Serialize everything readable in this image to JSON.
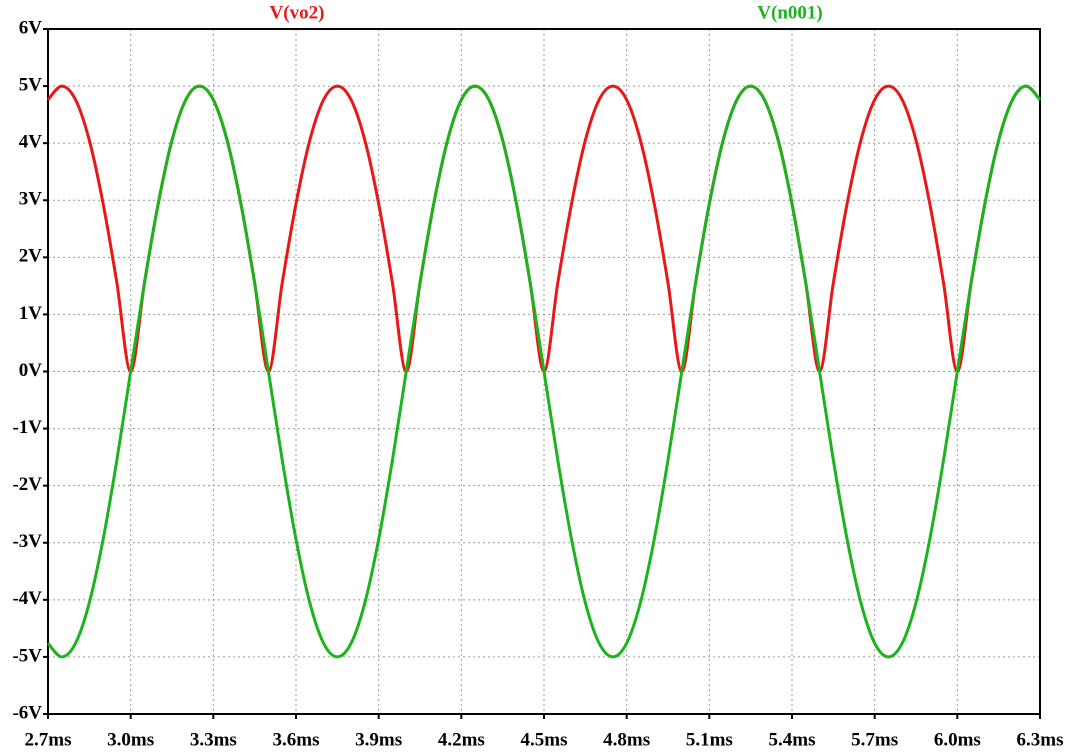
{
  "chart_data": {
    "type": "line",
    "x": [
      2.7,
      2.75,
      2.8,
      2.85,
      2.9,
      2.95,
      3,
      3.05,
      3.1,
      3.15,
      3.2,
      3.25,
      3.3,
      3.35,
      3.4,
      3.45,
      3.5,
      3.55,
      3.6,
      3.65,
      3.7,
      3.75,
      3.8,
      3.85,
      3.9,
      3.95,
      4,
      4.05,
      4.1,
      4.15,
      4.2,
      4.25,
      4.3,
      4.35,
      4.4,
      4.45,
      4.5,
      4.55,
      4.6,
      4.65,
      4.7,
      4.75,
      4.8,
      4.85,
      4.9,
      4.95,
      5,
      5.05,
      5.1,
      5.15,
      5.2,
      5.25,
      5.3,
      5.35,
      5.4,
      5.45,
      5.5,
      5.55,
      5.6,
      5.65,
      5.7,
      5.75,
      5.8,
      5.85,
      5.9,
      5.95,
      6,
      6.05,
      6.1,
      6.15,
      6.2,
      6.25,
      6.3
    ],
    "series": [
      {
        "name": "V(vo2)",
        "color": "#e81818",
        "values": [
          4.76,
          5,
          4.76,
          4.05,
          2.94,
          1.55,
          0,
          1.55,
          2.94,
          4.05,
          4.76,
          5,
          4.76,
          4.05,
          2.94,
          1.55,
          0,
          1.55,
          2.94,
          4.05,
          4.76,
          5,
          4.76,
          4.05,
          2.94,
          1.55,
          0,
          1.55,
          2.94,
          4.05,
          4.76,
          5,
          4.76,
          4.05,
          2.94,
          1.55,
          0,
          1.55,
          2.94,
          4.05,
          4.76,
          5,
          4.76,
          4.05,
          2.94,
          1.55,
          0,
          1.55,
          2.94,
          4.05,
          4.76,
          5,
          4.76,
          4.05,
          2.94,
          1.55,
          0,
          1.55,
          2.94,
          4.05,
          4.76,
          5,
          4.76,
          4.05,
          2.94,
          1.55,
          0,
          1.55,
          2.94,
          4.05,
          4.76,
          5,
          4.76
        ]
      },
      {
        "name": "V(n001)",
        "color": "#1cb41c",
        "values": [
          -4.76,
          -5,
          -4.76,
          -4.05,
          -2.94,
          -1.55,
          0,
          1.55,
          2.94,
          4.05,
          4.76,
          5,
          4.76,
          4.05,
          2.94,
          1.55,
          0,
          -1.55,
          -2.94,
          -4.05,
          -4.76,
          -5,
          -4.76,
          -4.05,
          -2.94,
          -1.55,
          0,
          1.55,
          2.94,
          4.05,
          4.76,
          5,
          4.76,
          4.05,
          2.94,
          1.55,
          0,
          -1.55,
          -2.94,
          -4.05,
          -4.76,
          -5,
          -4.76,
          -4.05,
          -2.94,
          -1.55,
          0,
          1.55,
          2.94,
          4.05,
          4.76,
          5,
          4.76,
          4.05,
          2.94,
          1.55,
          0,
          -1.55,
          -2.94,
          -4.05,
          -4.76,
          -5,
          -4.76,
          -4.05,
          -2.94,
          -1.55,
          0,
          1.55,
          2.94,
          4.05,
          4.76,
          5,
          4.76
        ]
      }
    ],
    "xlim": [
      2.7,
      6.3
    ],
    "xticks": [
      {
        "value": 2.7,
        "label": "2.7ms"
      },
      {
        "value": 3.0,
        "label": "3.0ms"
      },
      {
        "value": 3.3,
        "label": "3.3ms"
      },
      {
        "value": 3.6,
        "label": "3.6ms"
      },
      {
        "value": 3.9,
        "label": "3.9ms"
      },
      {
        "value": 4.2,
        "label": "4.2ms"
      },
      {
        "value": 4.5,
        "label": "4.5ms"
      },
      {
        "value": 4.8,
        "label": "4.8ms"
      },
      {
        "value": 5.1,
        "label": "5.1ms"
      },
      {
        "value": 5.4,
        "label": "5.4ms"
      },
      {
        "value": 5.7,
        "label": "5.7ms"
      },
      {
        "value": 6.0,
        "label": "6.0ms"
      },
      {
        "value": 6.3,
        "label": "6.3ms"
      }
    ],
    "ylim": [
      -6,
      6
    ],
    "yticks": [
      {
        "value": -6,
        "label": "-6V"
      },
      {
        "value": -5,
        "label": "-5V"
      },
      {
        "value": -4,
        "label": "-4V"
      },
      {
        "value": -3,
        "label": "-3V"
      },
      {
        "value": -2,
        "label": "-2V"
      },
      {
        "value": -1,
        "label": "-1V"
      },
      {
        "value": 0,
        "label": "0V"
      },
      {
        "value": 1,
        "label": "1V"
      },
      {
        "value": 2,
        "label": "2V"
      },
      {
        "value": 3,
        "label": "3V"
      },
      {
        "value": 4,
        "label": "4V"
      },
      {
        "value": 5,
        "label": "5V"
      },
      {
        "value": 6,
        "label": "6V"
      }
    ],
    "grid": true
  }
}
